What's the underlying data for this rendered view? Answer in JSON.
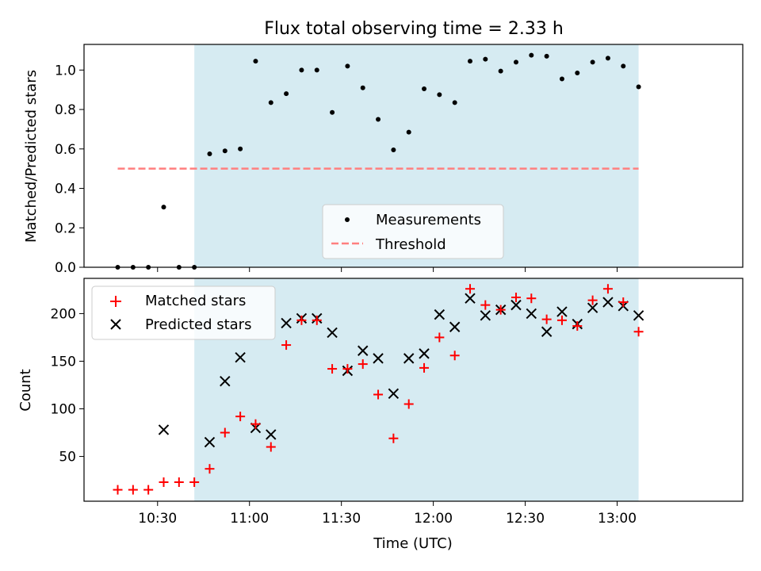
{
  "chart_data": [
    {
      "type": "scatter",
      "title": "Flux total observing time = 2.33 h",
      "xlabel": "",
      "ylabel": "Matched/Predicted stars",
      "xlim": [
        "10:06",
        "13:41"
      ],
      "ylim": [
        0,
        1.13
      ],
      "yticks": [
        "0.0",
        "0.2",
        "0.4",
        "0.6",
        "0.8",
        "1.0"
      ],
      "yticks_values": [
        0,
        0.2,
        0.4,
        0.6,
        0.8,
        1.0
      ],
      "shaded_interval": [
        "10:42",
        "13:07"
      ],
      "shade_color": "#add8e6",
      "legend": {
        "position": "lower center",
        "entries": [
          {
            "label": "Measurements",
            "marker": "dot",
            "color": "#000000"
          },
          {
            "label": "Threshold",
            "marker": "dashed-line",
            "color": "#ff7f7f"
          }
        ]
      },
      "threshold": {
        "name": "Threshold",
        "value": 0.5,
        "x_start": "10:17",
        "x_end": "13:07",
        "color": "#ff7f7f",
        "style": "dashed"
      },
      "series": [
        {
          "name": "Measurements",
          "marker": "dot",
          "color": "#000000",
          "points": [
            [
              "10:17",
              0.0
            ],
            [
              "10:22",
              0.0
            ],
            [
              "10:27",
              0.0
            ],
            [
              "10:32",
              0.305
            ],
            [
              "10:37",
              0.0
            ],
            [
              "10:42",
              0.0
            ],
            [
              "10:47",
              0.575
            ],
            [
              "10:52",
              0.59
            ],
            [
              "10:57",
              0.6
            ],
            [
              "11:02",
              1.045
            ],
            [
              "11:07",
              0.835
            ],
            [
              "11:12",
              0.88
            ],
            [
              "11:17",
              1.0
            ],
            [
              "11:22",
              1.0
            ],
            [
              "11:27",
              0.785
            ],
            [
              "11:32",
              1.02
            ],
            [
              "11:37",
              0.91
            ],
            [
              "11:42",
              0.75
            ],
            [
              "11:47",
              0.595
            ],
            [
              "11:52",
              0.685
            ],
            [
              "11:57",
              0.905
            ],
            [
              "12:02",
              0.875
            ],
            [
              "12:07",
              0.835
            ],
            [
              "12:12",
              1.045
            ],
            [
              "12:17",
              1.055
            ],
            [
              "12:22",
              0.995
            ],
            [
              "12:27",
              1.04
            ],
            [
              "12:32",
              1.075
            ],
            [
              "12:37",
              1.07
            ],
            [
              "12:42",
              0.955
            ],
            [
              "12:47",
              0.985
            ],
            [
              "12:52",
              1.04
            ],
            [
              "12:57",
              1.06
            ],
            [
              "13:02",
              1.02
            ],
            [
              "13:07",
              0.915
            ]
          ]
        }
      ]
    },
    {
      "type": "scatter",
      "title": "",
      "xlabel": "Time (UTC)",
      "ylabel": "Count",
      "xlim": [
        "10:06",
        "13:41"
      ],
      "ylim": [
        3,
        237
      ],
      "xticks": [
        "10:30",
        "11:00",
        "11:30",
        "12:00",
        "12:30",
        "13:00"
      ],
      "yticks": [
        "50",
        "100",
        "150",
        "200"
      ],
      "yticks_values": [
        50,
        100,
        150,
        200
      ],
      "shaded_interval": [
        "10:42",
        "13:07"
      ],
      "shade_color": "#add8e6",
      "legend": {
        "position": "upper left",
        "entries": [
          {
            "label": "Matched stars",
            "marker": "plus",
            "color": "#ff0000"
          },
          {
            "label": "Predicted stars",
            "marker": "x",
            "color": "#000000"
          }
        ]
      },
      "x": [
        "10:17",
        "10:22",
        "10:27",
        "10:32",
        "10:37",
        "10:42",
        "10:47",
        "10:52",
        "10:57",
        "11:02",
        "11:07",
        "11:12",
        "11:17",
        "11:22",
        "11:27",
        "11:32",
        "11:37",
        "11:42",
        "11:47",
        "11:52",
        "11:57",
        "12:02",
        "12:07",
        "12:12",
        "12:17",
        "12:22",
        "12:27",
        "12:32",
        "12:37",
        "12:42",
        "12:47",
        "12:52",
        "12:57",
        "13:02",
        "13:07"
      ],
      "series": [
        {
          "name": "Matched stars",
          "marker": "plus",
          "color": "#ff0000",
          "values": [
            15,
            15,
            15,
            23,
            23,
            23,
            37,
            75,
            92,
            84,
            60,
            167,
            193,
            193,
            142,
            142,
            147,
            115,
            69,
            105,
            143,
            175,
            156,
            226,
            209,
            204,
            217,
            216,
            194,
            193,
            187,
            214,
            226,
            212,
            181
          ]
        },
        {
          "name": "Predicted stars",
          "marker": "x",
          "color": "#000000",
          "values": [
            null,
            null,
            null,
            78,
            null,
            null,
            65,
            129,
            154,
            80,
            73,
            190,
            195,
            195,
            180,
            140,
            161,
            153,
            116,
            153,
            158,
            199,
            186,
            216,
            198,
            204,
            209,
            200,
            181,
            202,
            189,
            206,
            212,
            208,
            198
          ]
        }
      ]
    }
  ]
}
